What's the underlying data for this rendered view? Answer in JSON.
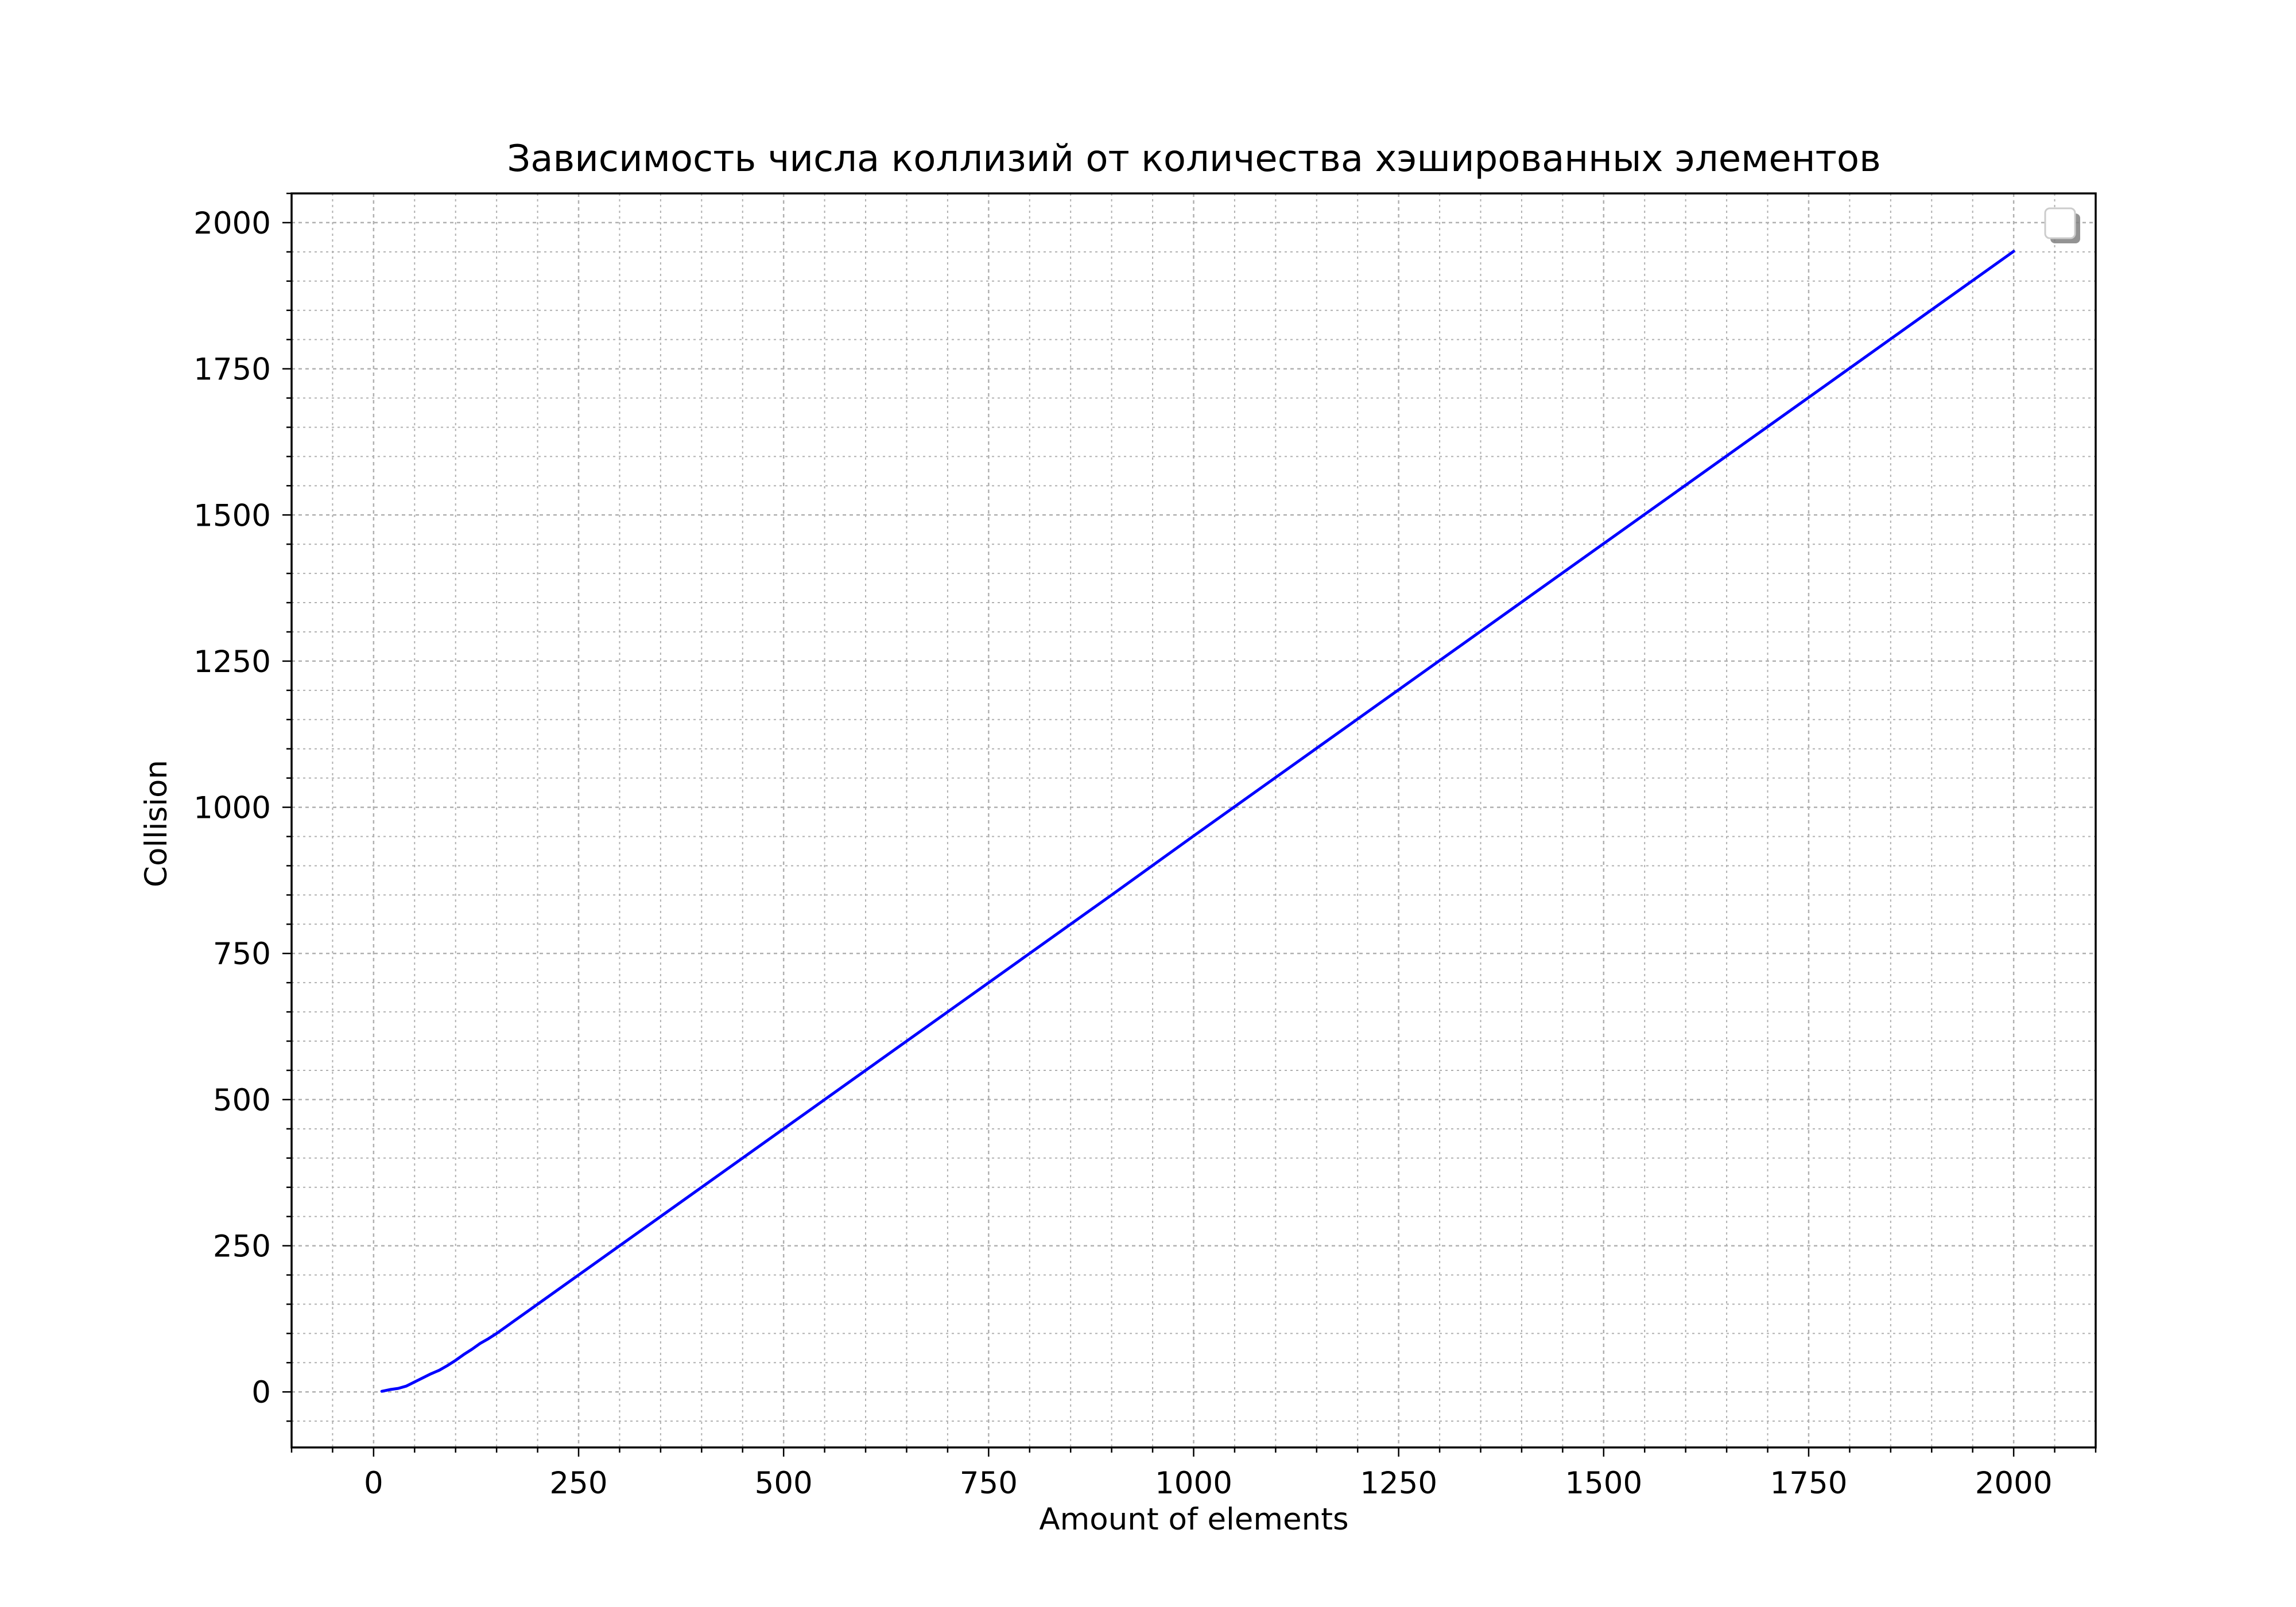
{
  "chart_data": {
    "type": "line",
    "title": "Зависимость числа коллизий от количества хэшированных элементов",
    "xlabel": "Amount of elements",
    "ylabel": "Collision",
    "xlim": [
      -100,
      2100
    ],
    "ylim": [
      -95,
      2050
    ],
    "x_ticks": [
      0,
      250,
      500,
      750,
      1000,
      1250,
      1500,
      1750,
      2000
    ],
    "y_ticks": [
      0,
      250,
      500,
      750,
      1000,
      1250,
      1500,
      1750,
      2000
    ],
    "x_minor_step": 50,
    "y_minor_step": 50,
    "grid": true,
    "legend": "top-right",
    "legend_entries": [],
    "series": [
      {
        "color": "#0000ff",
        "x": [
          10,
          20,
          30,
          40,
          50,
          60,
          70,
          80,
          90,
          100,
          110,
          120,
          130,
          140,
          150,
          200,
          300,
          400,
          500,
          600,
          700,
          800,
          900,
          1000,
          1100,
          1200,
          1300,
          1400,
          1500,
          1600,
          1700,
          1800,
          1900,
          2000
        ],
        "y": [
          1,
          4,
          6,
          10,
          17,
          24,
          31,
          37,
          45,
          54,
          64,
          73,
          83,
          91,
          100,
          150,
          250,
          350,
          450,
          550,
          650,
          750,
          850,
          951,
          1051,
          1151,
          1251,
          1351,
          1451,
          1551,
          1651,
          1751,
          1851,
          1951
        ]
      }
    ]
  }
}
